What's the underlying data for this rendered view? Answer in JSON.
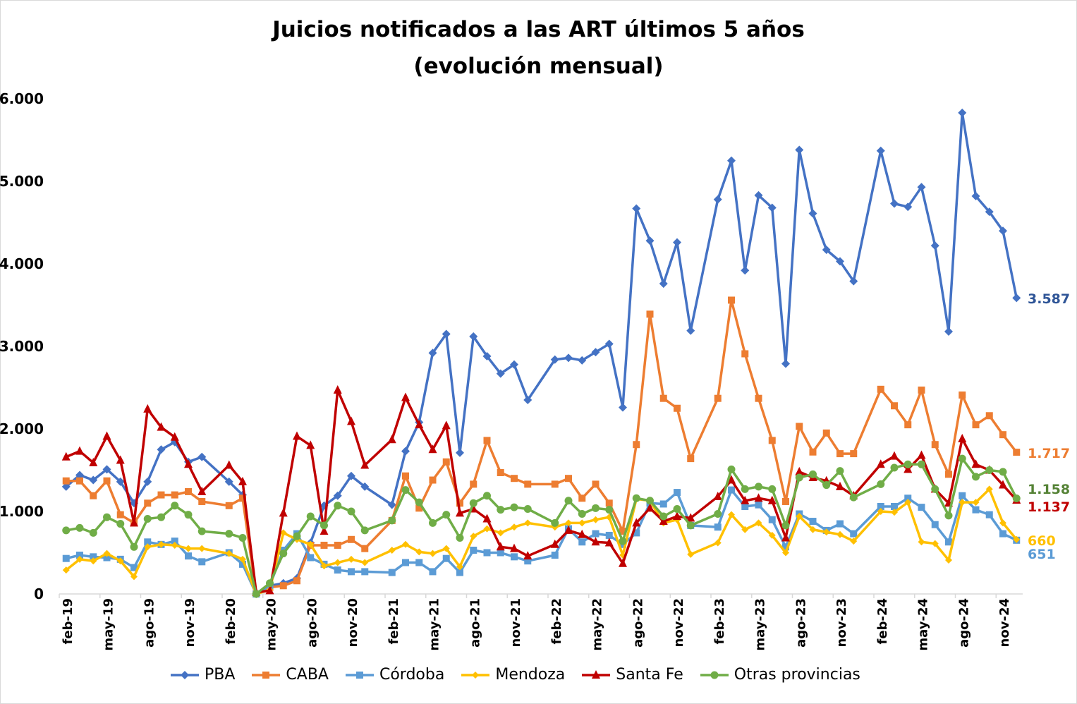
{
  "chart_data": {
    "type": "line",
    "title": "Juicios notificados a las ART últimos 5 años",
    "subtitle": "(evolución mensual)",
    "xlabel": "",
    "ylabel": "",
    "ylim": [
      0,
      6000
    ],
    "yticks": [
      "0",
      "1.000",
      "2.000",
      "3.000",
      "4.000",
      "5.000",
      "6.000"
    ],
    "ytick_values": [
      0,
      1000,
      2000,
      3000,
      4000,
      5000,
      6000
    ],
    "grid": false,
    "legend_position": "bottom",
    "xticks": [
      "feb-19",
      "may-19",
      "ago-19",
      "nov-19",
      "feb-20",
      "may-20",
      "ago-20",
      "nov-20",
      "feb-21",
      "may-21",
      "ago-21",
      "nov-21",
      "feb-22",
      "may-22",
      "ago-22",
      "nov-22",
      "feb-23",
      "may-23",
      "ago-23",
      "nov-23",
      "feb-24",
      "may-24",
      "ago-24",
      "nov-24"
    ],
    "x": [
      "feb-19",
      "mar-19",
      "abr-19",
      "may-19",
      "jun-19",
      "jul-19",
      "ago-19",
      "sep-19",
      "oct-19",
      "nov-19",
      "dic-19",
      "feb-20",
      "mar-20",
      "abr-20",
      "may-20",
      "jun-20",
      "jul-20",
      "ago-20",
      "sep-20",
      "oct-20",
      "nov-20",
      "dic-20",
      "feb-21",
      "mar-21",
      "abr-21",
      "may-21",
      "jun-21",
      "jul-21",
      "ago-21",
      "sep-21",
      "oct-21",
      "nov-21",
      "dic-21",
      "feb-22",
      "mar-22",
      "abr-22",
      "may-22",
      "jun-22",
      "jul-22",
      "ago-22",
      "sep-22",
      "oct-22",
      "nov-22",
      "dic-22",
      "feb-23",
      "mar-23",
      "abr-23",
      "may-23",
      "jun-23",
      "jul-23",
      "ago-23",
      "sep-23",
      "oct-23",
      "nov-23",
      "dic-23",
      "feb-24",
      "mar-24",
      "abr-24",
      "may-24",
      "jun-24",
      "jul-24",
      "ago-24",
      "sep-24",
      "oct-24",
      "nov-24",
      "dic-24"
    ],
    "series": [
      {
        "name": "PBA",
        "color": "#4472C4",
        "label_color": "#2F5597",
        "marker": "diamond",
        "end_label": "3.587",
        "values": [
          1300,
          1440,
          1380,
          1510,
          1360,
          1100,
          1360,
          1750,
          1840,
          1600,
          1660,
          1360,
          1200,
          0,
          100,
          130,
          190,
          620,
          1070,
          1190,
          1430,
          1300,
          1080,
          1730,
          2080,
          2920,
          3150,
          1710,
          3120,
          2880,
          2670,
          2780,
          2350,
          2840,
          2860,
          2830,
          2930,
          3030,
          2260,
          4670,
          4280,
          3760,
          4260,
          3190,
          4780,
          5250,
          3920,
          4830,
          4680,
          2790,
          5380,
          4610,
          4170,
          4030,
          3790,
          5370,
          4730,
          4690,
          4930,
          4220,
          3180,
          5830,
          4820,
          4630,
          4400,
          3587
        ]
      },
      {
        "name": "CABA",
        "color": "#ED7D31",
        "label_color": "#ED7D31",
        "marker": "square",
        "end_label": "1.717",
        "values": [
          1370,
          1370,
          1190,
          1370,
          960,
          860,
          1100,
          1200,
          1200,
          1240,
          1120,
          1070,
          1160,
          0,
          80,
          100,
          160,
          590,
          590,
          590,
          660,
          550,
          890,
          1430,
          1040,
          1380,
          1600,
          1100,
          1330,
          1860,
          1470,
          1400,
          1330,
          1330,
          1400,
          1160,
          1330,
          1100,
          760,
          1810,
          3390,
          2370,
          2250,
          1640,
          2370,
          3560,
          2910,
          2370,
          1860,
          1120,
          2030,
          1720,
          1950,
          1700,
          1700,
          2480,
          2280,
          2050,
          2470,
          1810,
          1450,
          2410,
          2050,
          2160,
          1930,
          1717
        ]
      },
      {
        "name": "Córdoba",
        "color": "#5B9BD5",
        "label_color": "#5B9BD5",
        "marker": "square",
        "end_label": "651",
        "values": [
          430,
          470,
          450,
          440,
          420,
          320,
          630,
          600,
          640,
          460,
          390,
          500,
          360,
          0,
          100,
          530,
          730,
          440,
          360,
          290,
          270,
          270,
          260,
          380,
          380,
          270,
          430,
          260,
          530,
          500,
          500,
          450,
          400,
          470,
          790,
          630,
          730,
          710,
          600,
          740,
          1100,
          1090,
          1230,
          830,
          810,
          1260,
          1060,
          1080,
          900,
          570,
          970,
          880,
          770,
          850,
          730,
          1060,
          1060,
          1160,
          1050,
          840,
          630,
          1190,
          1020,
          960,
          730,
          651
        ]
      },
      {
        "name": "Mendoza",
        "color": "#FFC000",
        "label_color": "#FFC000",
        "marker": "diamond-small",
        "end_label": "660",
        "values": [
          290,
          420,
          400,
          490,
          400,
          210,
          570,
          600,
          590,
          550,
          550,
          490,
          420,
          0,
          50,
          740,
          660,
          600,
          340,
          380,
          420,
          380,
          530,
          600,
          510,
          490,
          550,
          330,
          700,
          790,
          740,
          810,
          860,
          810,
          860,
          860,
          900,
          930,
          470,
          1150,
          1130,
          860,
          900,
          480,
          620,
          960,
          780,
          860,
          710,
          500,
          940,
          780,
          750,
          720,
          640,
          1000,
          990,
          1110,
          630,
          610,
          410,
          1110,
          1110,
          1270,
          860,
          660
        ]
      },
      {
        "name": "Santa Fe",
        "color": "#C00000",
        "label_color": "#C00000",
        "marker": "triangle",
        "end_label": "1.137",
        "values": [
          1660,
          1730,
          1590,
          1910,
          1620,
          860,
          2240,
          2020,
          1900,
          1570,
          1240,
          1560,
          1360,
          20,
          40,
          980,
          1910,
          1800,
          760,
          2470,
          2090,
          1560,
          1870,
          2380,
          2050,
          1750,
          2040,
          980,
          1030,
          910,
          570,
          550,
          460,
          600,
          770,
          720,
          630,
          620,
          370,
          860,
          1040,
          880,
          940,
          920,
          1180,
          1380,
          1130,
          1160,
          1130,
          680,
          1480,
          1410,
          1370,
          1300,
          1190,
          1570,
          1670,
          1510,
          1680,
          1270,
          1100,
          1880,
          1570,
          1500,
          1320,
          1137
        ]
      },
      {
        "name": "Otras provincias",
        "color": "#70AD47",
        "label_color": "#548235",
        "marker": "circle",
        "end_label": "1.158",
        "values": [
          770,
          800,
          740,
          930,
          850,
          570,
          910,
          930,
          1070,
          960,
          760,
          730,
          680,
          0,
          130,
          490,
          700,
          940,
          830,
          1070,
          1000,
          770,
          890,
          1260,
          1110,
          860,
          960,
          680,
          1100,
          1190,
          1020,
          1050,
          1030,
          860,
          1130,
          970,
          1040,
          1020,
          640,
          1160,
          1130,
          940,
          1030,
          830,
          970,
          1510,
          1270,
          1300,
          1270,
          830,
          1410,
          1450,
          1320,
          1490,
          1170,
          1330,
          1530,
          1570,
          1570,
          1270,
          950,
          1640,
          1420,
          1500,
          1480,
          1158
        ]
      }
    ]
  }
}
